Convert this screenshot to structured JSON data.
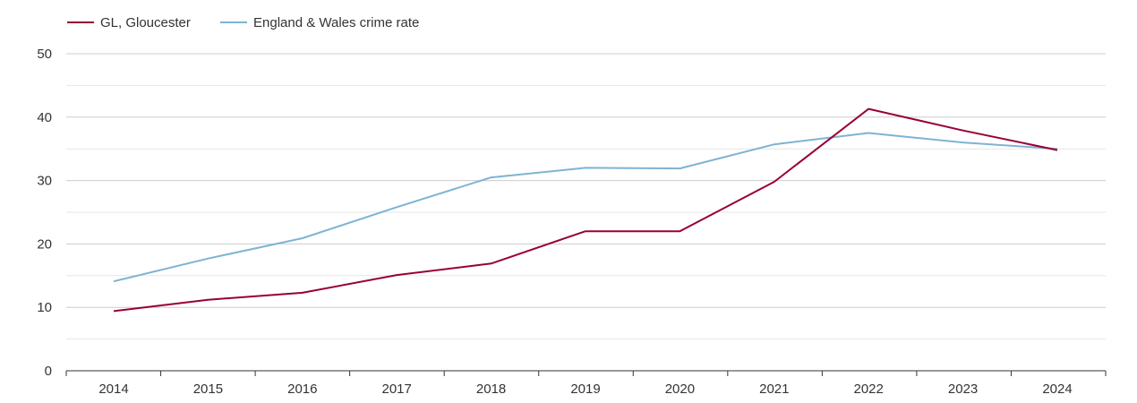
{
  "chart_data": {
    "type": "line",
    "x": [
      "2014",
      "2015",
      "2016",
      "2017",
      "2018",
      "2019",
      "2020",
      "2021",
      "2022",
      "2023",
      "2024"
    ],
    "series": [
      {
        "name": "GL, Gloucester",
        "color": "#990033",
        "values": [
          9.4,
          11.2,
          12.3,
          15.1,
          16.9,
          22.0,
          22.0,
          29.8,
          41.3,
          37.9,
          34.8
        ]
      },
      {
        "name": "England & Wales crime rate",
        "color": "#7eb3d3",
        "values": [
          14.1,
          17.7,
          20.9,
          25.8,
          30.5,
          32.0,
          31.9,
          35.7,
          37.5,
          36.0,
          35.0
        ]
      }
    ],
    "yticks": [
      0,
      10,
      20,
      30,
      40,
      50
    ],
    "ylim": [
      0,
      50
    ],
    "grid": true,
    "legend_position": "top-left",
    "title": "",
    "xlabel": "",
    "ylabel": ""
  }
}
